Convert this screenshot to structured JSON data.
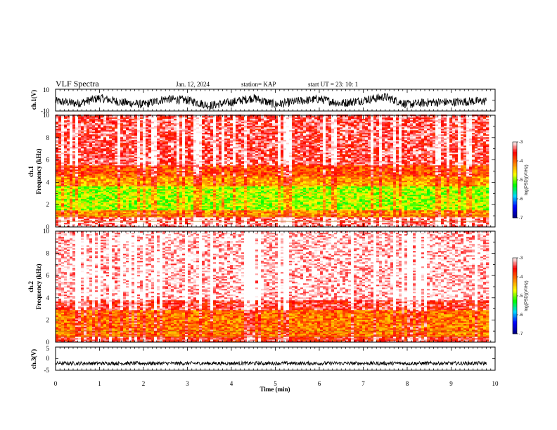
{
  "header": {
    "title": "VLF Spectra",
    "date": "Jan. 12, 2024",
    "station": "station= KAP",
    "start": "start UT =  23: 10: 1"
  },
  "chart_data": [
    {
      "type": "line",
      "panel": "ch1-waveform",
      "ylabel": "ch.1(V)",
      "ylim": [
        -10,
        10
      ],
      "yticks": [
        "10",
        "-10"
      ],
      "x": [
        0,
        0.5,
        1,
        1.5,
        2,
        2.5,
        3,
        3.5,
        4,
        4.5,
        5,
        5.5,
        6,
        6.5,
        7,
        7.5,
        8,
        8.5,
        9,
        9.5,
        9.8
      ],
      "series": [
        {
          "values": [
            -1,
            -3,
            2,
            -2,
            -4,
            1,
            0,
            -5,
            -2,
            2,
            -4,
            -1,
            1,
            -3,
            0,
            3,
            -4,
            -2,
            -2,
            -1,
            -1
          ]
        }
      ],
      "noise_amplitude": 4
    },
    {
      "type": "heatmap",
      "panel": "ch1-spectrogram",
      "ylabel": "ch.1\nFrequency (kHz)",
      "ylim": [
        0,
        10
      ],
      "yticks": [
        "0",
        "2",
        "4",
        "6",
        "8",
        "10"
      ],
      "xlim": [
        0,
        10
      ],
      "data_xmax": 9.8,
      "bands": [
        {
          "from": 0,
          "to": 0.8,
          "level": -3.3
        },
        {
          "from": 0.8,
          "to": 1.5,
          "level": -4.2
        },
        {
          "from": 1.5,
          "to": 3.6,
          "level": -4.9
        },
        {
          "from": 3.6,
          "to": 4.5,
          "level": -4.3
        },
        {
          "from": 4.5,
          "to": 5.5,
          "level": -3.9
        },
        {
          "from": 5.5,
          "to": 10,
          "level": -3.4
        }
      ],
      "colorbar": {
        "label": "log(PSD)(V²/Hz)",
        "ticks": [
          "-3",
          "-4",
          "-5",
          "-6",
          "-7"
        ],
        "range": [
          -7,
          -3
        ]
      }
    },
    {
      "type": "heatmap",
      "panel": "ch2-spectrogram",
      "ylabel": "ch.2\nFrequency (kHz)",
      "ylim": [
        0,
        10
      ],
      "yticks": [
        "0",
        "2",
        "4",
        "6",
        "8",
        "10"
      ],
      "xlim": [
        0,
        10
      ],
      "data_xmax": 9.8,
      "bands": [
        {
          "from": 0,
          "to": 0.5,
          "level": -3.6
        },
        {
          "from": 0.5,
          "to": 2.8,
          "level": -4.1
        },
        {
          "from": 2.8,
          "to": 3.7,
          "level": -3.5
        },
        {
          "from": 3.7,
          "to": 10,
          "level": -3.05
        }
      ],
      "colorbar": {
        "label": "log(PSD)(V²/Hz)",
        "ticks": [
          "-3",
          "-4",
          "-5",
          "-6",
          "-7"
        ],
        "range": [
          -7,
          -3
        ]
      }
    },
    {
      "type": "line",
      "panel": "ch3-waveform",
      "ylabel": "ch.3(V)",
      "ylim": [
        -5,
        5
      ],
      "yticks": [
        "5",
        "0",
        "-5"
      ],
      "x": [
        0,
        9.8
      ],
      "series": [
        {
          "values": [
            -2,
            -2
          ]
        }
      ],
      "noise_amplitude": 0.8,
      "xlabel": "Time (min)",
      "xlim": [
        0,
        10
      ],
      "xticks": [
        "0",
        "1",
        "2",
        "3",
        "4",
        "5",
        "6",
        "7",
        "8",
        "9",
        "10"
      ]
    }
  ],
  "colors": {
    "trace": "#000000",
    "colormap": [
      "#000080",
      "#0000ff",
      "#00d8ff",
      "#00ff00",
      "#ffff00",
      "#ff7f00",
      "#ff0000",
      "#ffffff"
    ]
  }
}
